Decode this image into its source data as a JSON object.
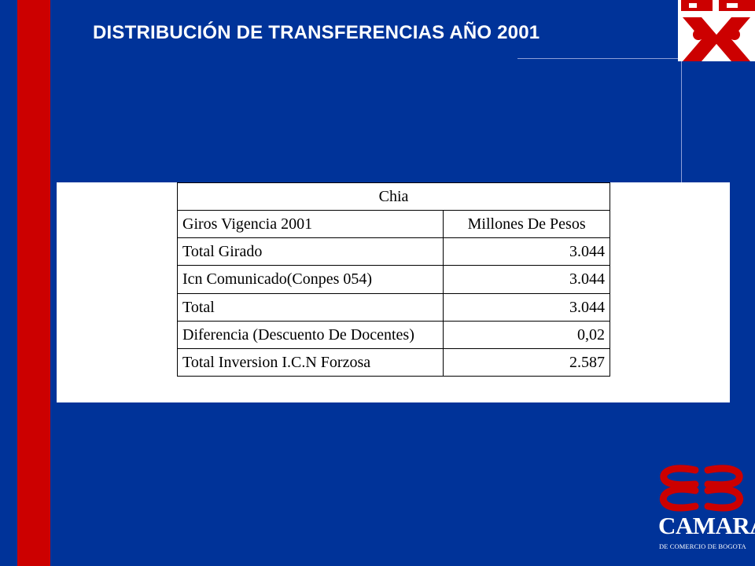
{
  "slide": {
    "title": "DISTRIBUCIÓN DE TRANSFERENCIAS AÑO 2001"
  },
  "table": {
    "caption": "Chia",
    "headers": [
      "Giros Vigencia 2001",
      "Millones De Pesos"
    ],
    "rows": [
      {
        "label": "Total Girado",
        "value": "3.044"
      },
      {
        "label": "Icn Comunicado(Conpes 054)",
        "value": "3.044"
      },
      {
        "label": "Total",
        "value": "3.044"
      },
      {
        "label": "Diferencia (Descuento De Docentes)",
        "value": "0,02"
      },
      {
        "label": "Total Inversion I.C.N Forzosa",
        "value": "2.587"
      }
    ]
  },
  "logo": {
    "name": "CAMARA",
    "subtitle": "DE COMERCIO DE BOGOTA"
  },
  "colors": {
    "background": "#003399",
    "accent_red": "#cc0000",
    "text": "#ffffff"
  }
}
